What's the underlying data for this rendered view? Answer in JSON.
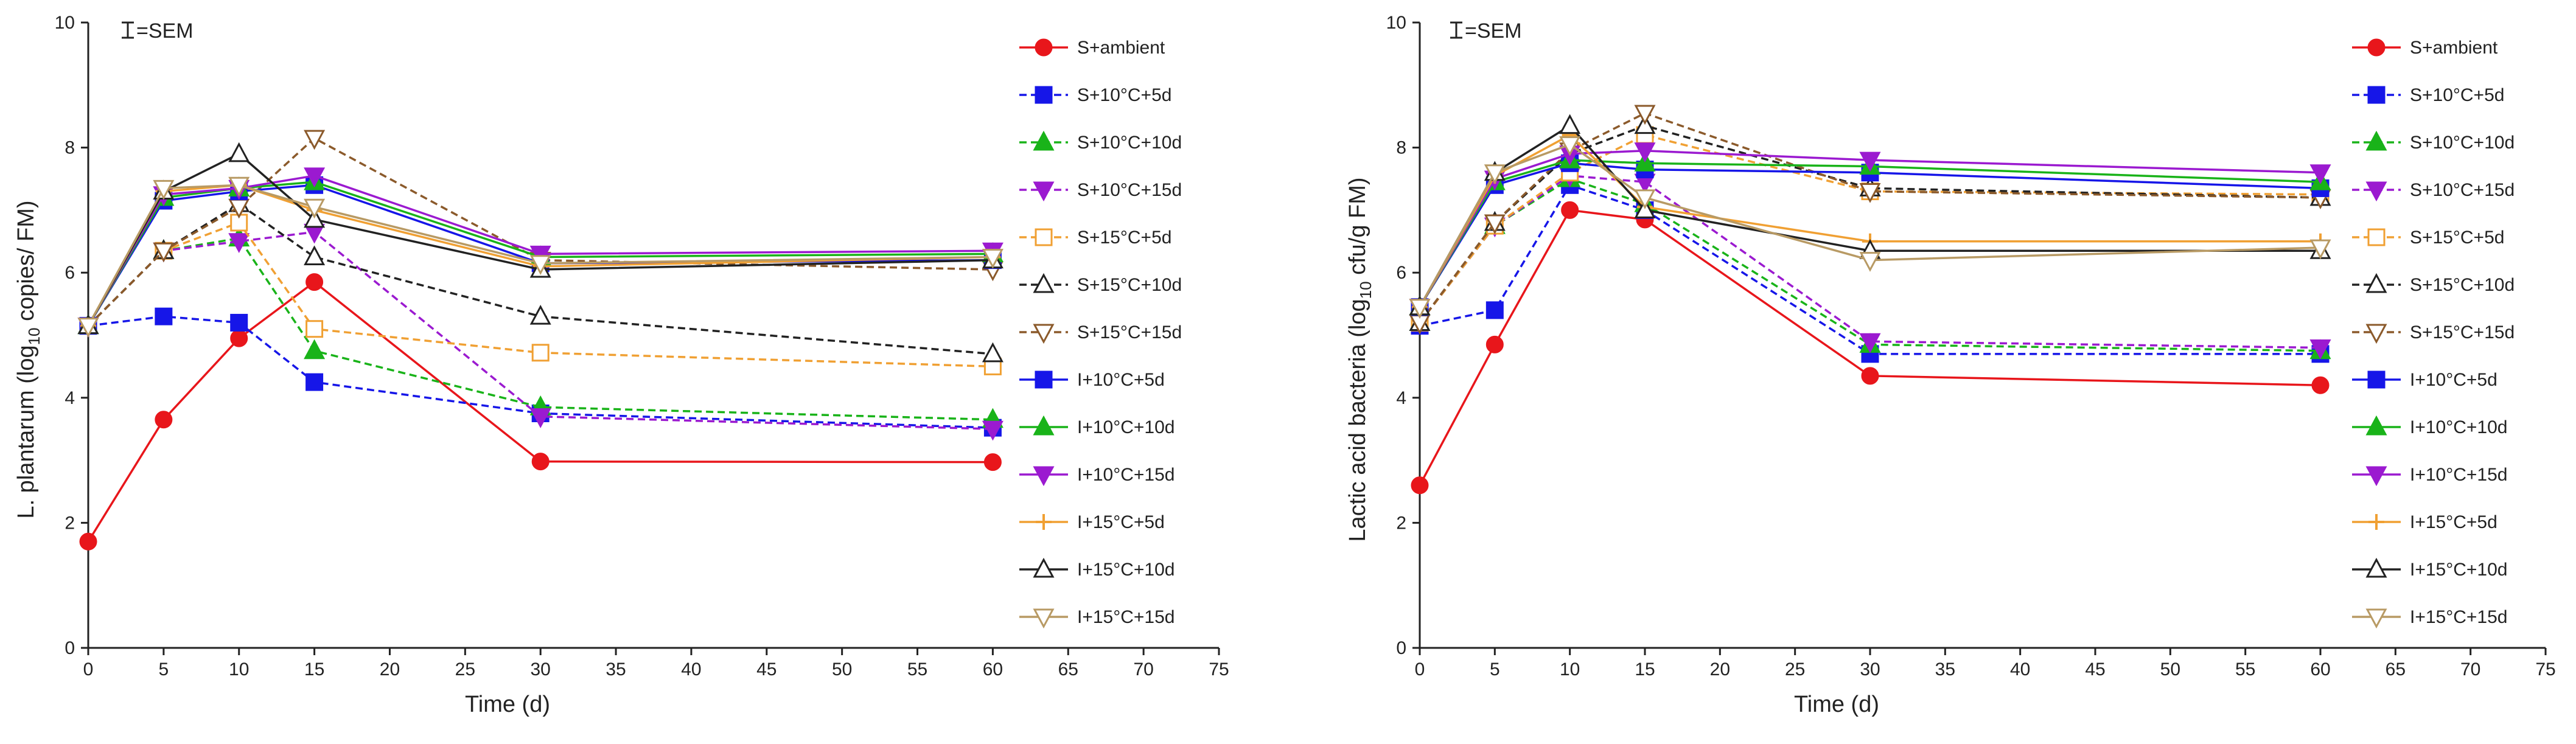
{
  "figure": {
    "legend_note": "=SEM"
  },
  "styles": {
    "S+ambient": {
      "color": "#e8161b",
      "marker": "circle",
      "dash": "solid",
      "fill": true
    },
    "S+10°C+5d": {
      "color": "#1616e8",
      "marker": "square",
      "dash": "dashed",
      "fill": true
    },
    "S+10°C+10d": {
      "color": "#19b319",
      "marker": "triangle-up",
      "dash": "dashed",
      "fill": true
    },
    "S+10°C+15d": {
      "color": "#9b1ad0",
      "marker": "triangle-down",
      "dash": "dashed",
      "fill": true
    },
    "S+15°C+5d": {
      "color": "#f0a033",
      "marker": "square",
      "dash": "dashed",
      "fill": false
    },
    "S+15°C+10d": {
      "color": "#222222",
      "marker": "triangle-up",
      "dash": "dashed",
      "fill": false
    },
    "S+15°C+15d": {
      "color": "#8b5a2b",
      "marker": "triangle-down",
      "dash": "dashed",
      "fill": false
    },
    "I+10°C+5d": {
      "color": "#1616e8",
      "marker": "square",
      "dash": "solid",
      "fill": true
    },
    "I+10°C+10d": {
      "color": "#19b319",
      "marker": "triangle-up",
      "dash": "solid",
      "fill": true
    },
    "I+10°C+15d": {
      "color": "#9b1ad0",
      "marker": "triangle-down",
      "dash": "solid",
      "fill": true
    },
    "I+15°C+5d": {
      "color": "#f0a033",
      "marker": "plus",
      "dash": "solid",
      "fill": false
    },
    "I+15°C+10d": {
      "color": "#222222",
      "marker": "triangle-up",
      "dash": "solid",
      "fill": false
    },
    "I+15°C+15d": {
      "color": "#b89a64",
      "marker": "triangle-down",
      "dash": "solid",
      "fill": false
    }
  },
  "chart_data": [
    {
      "type": "line",
      "title": "",
      "xlabel": "Time (d)",
      "ylabel": "L. plantarum (log10 copies/ FM)",
      "xlim": [
        0,
        75
      ],
      "ylim": [
        0,
        10
      ],
      "xticks": [
        0,
        5,
        10,
        15,
        20,
        25,
        30,
        35,
        40,
        45,
        50,
        55,
        60,
        65,
        70,
        75
      ],
      "yticks": [
        0,
        2,
        4,
        6,
        8,
        10
      ],
      "x": [
        0,
        5,
        10,
        15,
        30,
        60
      ],
      "legend_position": "right",
      "series": [
        {
          "name": "S+ambient",
          "values": [
            1.7,
            3.65,
            4.95,
            5.85,
            2.98,
            2.97
          ]
        },
        {
          "name": "S+10°C+5d",
          "values": [
            5.15,
            5.3,
            5.2,
            4.25,
            3.75,
            3.52
          ]
        },
        {
          "name": "S+10°C+10d",
          "values": [
            5.15,
            6.35,
            6.55,
            4.75,
            3.85,
            3.65
          ]
        },
        {
          "name": "S+10°C+15d",
          "values": [
            5.15,
            6.35,
            6.5,
            6.65,
            3.7,
            3.5
          ]
        },
        {
          "name": "S+15°C+5d",
          "values": [
            5.15,
            6.35,
            6.8,
            5.1,
            4.72,
            4.5
          ]
        },
        {
          "name": "S+15°C+10d",
          "values": [
            5.15,
            6.35,
            7.1,
            6.25,
            5.3,
            4.7
          ]
        },
        {
          "name": "S+15°C+15d",
          "values": [
            5.15,
            6.35,
            7.05,
            8.15,
            6.2,
            6.05
          ]
        },
        {
          "name": "I+10°C+5d",
          "values": [
            5.15,
            7.15,
            7.3,
            7.4,
            6.15,
            6.2
          ]
        },
        {
          "name": "I+10°C+10d",
          "values": [
            5.15,
            7.2,
            7.35,
            7.45,
            6.25,
            6.3
          ]
        },
        {
          "name": "I+10°C+15d",
          "values": [
            5.15,
            7.25,
            7.35,
            7.55,
            6.3,
            6.35
          ]
        },
        {
          "name": "I+15°C+5d",
          "values": [
            5.15,
            7.3,
            7.4,
            7.0,
            6.1,
            6.25
          ]
        },
        {
          "name": "I+15°C+10d",
          "values": [
            5.15,
            7.3,
            7.9,
            6.85,
            6.05,
            6.2
          ]
        },
        {
          "name": "I+15°C+15d",
          "values": [
            5.15,
            7.35,
            7.4,
            7.05,
            6.15,
            6.25
          ]
        }
      ]
    },
    {
      "type": "line",
      "title": "",
      "xlabel": "Time (d)",
      "ylabel": "Lactic acid bacteria (log10 cfu/g FM)",
      "xlim": [
        0,
        75
      ],
      "ylim": [
        0,
        10
      ],
      "xticks": [
        0,
        5,
        10,
        15,
        20,
        25,
        30,
        35,
        40,
        45,
        50,
        55,
        60,
        65,
        70,
        75
      ],
      "yticks": [
        0,
        2,
        4,
        6,
        8,
        10
      ],
      "x": [
        0,
        5,
        10,
        15,
        30,
        60
      ],
      "legend_position": "right",
      "series": [
        {
          "name": "S+ambient",
          "values": [
            2.6,
            4.85,
            7.0,
            6.85,
            4.35,
            4.2
          ]
        },
        {
          "name": "S+10°C+5d",
          "values": [
            5.15,
            5.4,
            7.4,
            7.0,
            4.7,
            4.7
          ]
        },
        {
          "name": "S+10°C+10d",
          "values": [
            5.2,
            6.75,
            7.5,
            7.1,
            4.85,
            4.75
          ]
        },
        {
          "name": "S+10°C+15d",
          "values": [
            5.2,
            6.75,
            7.55,
            7.45,
            4.9,
            4.8
          ]
        },
        {
          "name": "S+15°C+5d",
          "values": [
            5.2,
            6.75,
            7.6,
            8.2,
            7.3,
            7.25
          ]
        },
        {
          "name": "S+15°C+10d",
          "values": [
            5.2,
            6.8,
            7.9,
            8.35,
            7.35,
            7.2
          ]
        },
        {
          "name": "S+15°C+15d",
          "values": [
            5.2,
            6.8,
            7.95,
            8.55,
            7.3,
            7.2
          ]
        },
        {
          "name": "I+10°C+5d",
          "values": [
            5.45,
            7.4,
            7.75,
            7.65,
            7.6,
            7.35
          ]
        },
        {
          "name": "I+10°C+10d",
          "values": [
            5.45,
            7.45,
            7.8,
            7.75,
            7.7,
            7.45
          ]
        },
        {
          "name": "I+10°C+15d",
          "values": [
            5.45,
            7.5,
            7.9,
            7.95,
            7.8,
            7.6
          ]
        },
        {
          "name": "I+15°C+5d",
          "values": [
            5.45,
            7.55,
            8.2,
            7.05,
            6.5,
            6.5
          ]
        },
        {
          "name": "I+15°C+10d",
          "values": [
            5.45,
            7.6,
            8.35,
            7.0,
            6.35,
            6.35
          ]
        },
        {
          "name": "I+15°C+15d",
          "values": [
            5.45,
            7.6,
            8.05,
            7.2,
            6.2,
            6.4
          ]
        }
      ]
    }
  ]
}
